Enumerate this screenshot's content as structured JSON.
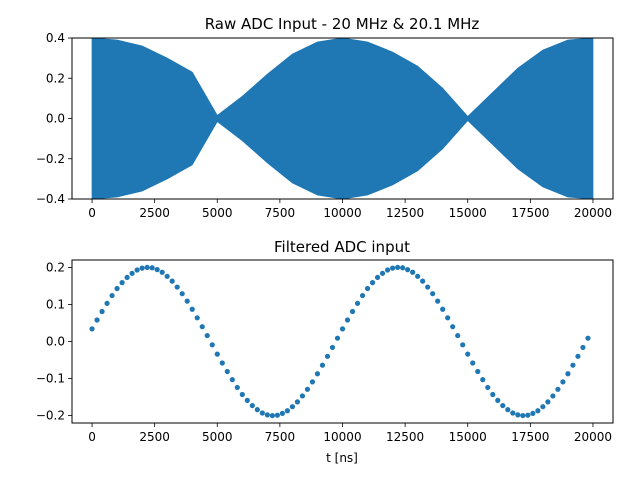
{
  "chart_data": [
    {
      "type": "area",
      "title": "Raw ADC Input - 20 MHz & 20.1 MHz",
      "xlabel": "",
      "ylabel": "",
      "xlim": [
        -800,
        20800
      ],
      "ylim": [
        -0.4,
        0.4
      ],
      "xticks": [
        0,
        2500,
        5000,
        7500,
        10000,
        12500,
        15000,
        17500,
        20000
      ],
      "xtick_labels": [
        "0",
        "2500",
        "5000",
        "7500",
        "10000",
        "12500",
        "15000",
        "17500",
        "20000"
      ],
      "yticks": [
        -0.4,
        -0.2,
        0.0,
        0.2,
        0.4
      ],
      "ytick_labels": [
        "−0.4",
        "−0.2",
        "0.0",
        "0.2",
        "0.4"
      ],
      "grid": false,
      "color": "#1f77b4",
      "series": [
        {
          "description_fields": "envelope of dense carrier oscillation",
          "x": [
            0,
            1000,
            2000,
            3000,
            4000,
            5000,
            6000,
            7000,
            8000,
            9000,
            10000,
            11000,
            12000,
            13000,
            14000,
            15000,
            16000,
            17000,
            18000,
            19000,
            20000
          ],
          "upper": [
            0.4,
            0.39,
            0.36,
            0.3,
            0.23,
            0.015,
            0.11,
            0.22,
            0.32,
            0.38,
            0.4,
            0.38,
            0.33,
            0.26,
            0.15,
            0.01,
            0.13,
            0.25,
            0.34,
            0.39,
            0.4
          ],
          "lower": [
            -0.4,
            -0.39,
            -0.36,
            -0.3,
            -0.23,
            -0.015,
            -0.11,
            -0.22,
            -0.32,
            -0.38,
            -0.4,
            -0.38,
            -0.33,
            -0.26,
            -0.15,
            -0.01,
            -0.13,
            -0.25,
            -0.34,
            -0.39,
            -0.4
          ]
        }
      ]
    },
    {
      "type": "scatter",
      "title": "Filtered ADC input",
      "xlabel": "t [ns]",
      "ylabel": "",
      "xlim": [
        -800,
        20800
      ],
      "ylim": [
        -0.22,
        0.22
      ],
      "xticks": [
        0,
        2500,
        5000,
        7500,
        10000,
        12500,
        15000,
        17500,
        20000
      ],
      "xtick_labels": [
        "0",
        "2500",
        "5000",
        "7500",
        "10000",
        "12500",
        "15000",
        "17500",
        "20000"
      ],
      "yticks": [
        -0.2,
        -0.1,
        0.0,
        0.1,
        0.2
      ],
      "ytick_labels": [
        "−0.2",
        "−0.1",
        "0.0",
        "0.1",
        "0.2"
      ],
      "grid": false,
      "color": "#1f77b4",
      "x": [
        0,
        200,
        400,
        600,
        800,
        1000,
        1200,
        1400,
        1600,
        1800,
        2000,
        2200,
        2400,
        2600,
        2800,
        3000,
        3200,
        3400,
        3600,
        3800,
        4000,
        4200,
        4400,
        4600,
        4800,
        5000,
        5200,
        5400,
        5600,
        5800,
        6000,
        6200,
        6400,
        6600,
        6800,
        7000,
        7200,
        7400,
        7600,
        7800,
        8000,
        8200,
        8400,
        8600,
        8800,
        9000,
        9200,
        9400,
        9600,
        9800,
        10000,
        10200,
        10400,
        10600,
        10800,
        11000,
        11200,
        11400,
        11600,
        11800,
        12000,
        12200,
        12400,
        12600,
        12800,
        13000,
        13200,
        13400,
        13600,
        13800,
        14000,
        14200,
        14400,
        14600,
        14800,
        15000,
        15200,
        15400,
        15600,
        15800,
        16000,
        16200,
        16400,
        16600,
        16800,
        17000,
        17200,
        17400,
        17600,
        17800,
        18000,
        18200,
        18400,
        18600,
        18800,
        19000,
        19200,
        19400,
        19600,
        19800
      ],
      "y": [
        0.034,
        0.058,
        0.081,
        0.103,
        0.124,
        0.143,
        0.159,
        0.173,
        0.184,
        0.193,
        0.198,
        0.2,
        0.199,
        0.194,
        0.187,
        0.176,
        0.163,
        0.147,
        0.129,
        0.109,
        0.087,
        0.064,
        0.04,
        0.016,
        -0.009,
        -0.034,
        -0.058,
        -0.081,
        -0.103,
        -0.124,
        -0.143,
        -0.159,
        -0.173,
        -0.184,
        -0.193,
        -0.198,
        -0.2,
        -0.199,
        -0.194,
        -0.187,
        -0.176,
        -0.163,
        -0.147,
        -0.129,
        -0.109,
        -0.087,
        -0.064,
        -0.04,
        -0.016,
        0.009,
        0.034,
        0.058,
        0.081,
        0.103,
        0.124,
        0.143,
        0.159,
        0.173,
        0.184,
        0.193,
        0.198,
        0.2,
        0.199,
        0.194,
        0.187,
        0.176,
        0.163,
        0.147,
        0.129,
        0.109,
        0.087,
        0.064,
        0.04,
        0.016,
        -0.009,
        -0.034,
        -0.058,
        -0.081,
        -0.103,
        -0.124,
        -0.143,
        -0.159,
        -0.173,
        -0.184,
        -0.193,
        -0.198,
        -0.2,
        -0.199,
        -0.194,
        -0.187,
        -0.176,
        -0.163,
        -0.147,
        -0.129,
        -0.109,
        -0.087,
        -0.064,
        -0.04,
        -0.016,
        0.009
      ]
    }
  ]
}
